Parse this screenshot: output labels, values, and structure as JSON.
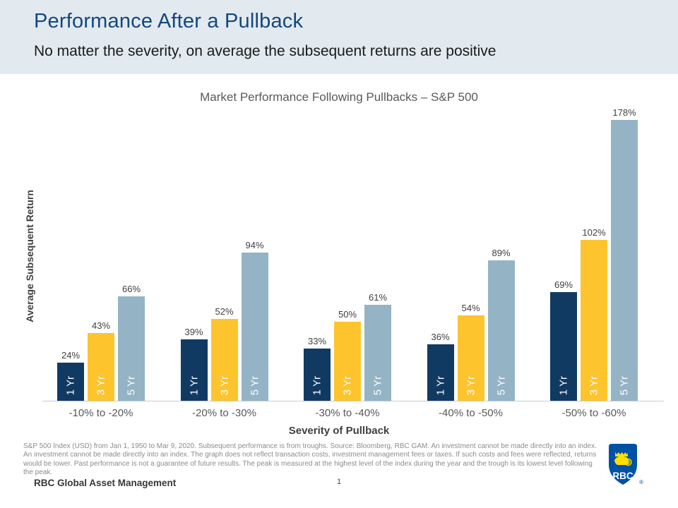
{
  "header": {
    "title": "Performance After a Pullback",
    "subtitle": "No matter the severity, on average the subsequent returns are positive"
  },
  "chart_data": {
    "type": "bar",
    "title": "Market Performance Following Pullbacks – S&P 500",
    "xlabel": "Severity of Pullback",
    "ylabel": "Average Subsequent Return",
    "categories": [
      "-10% to -20%",
      "-20% to -30%",
      "-30% to -40%",
      "-40% to -50%",
      "-50% to -60%"
    ],
    "series": [
      {
        "name": "1 Yr",
        "color": "#113A63",
        "values": [
          24,
          39,
          33,
          36,
          69
        ]
      },
      {
        "name": "3 Yr",
        "color": "#FDC42D",
        "values": [
          43,
          52,
          50,
          54,
          102
        ]
      },
      {
        "name": "5 Yr",
        "color": "#94B4C6",
        "values": [
          66,
          94,
          61,
          89,
          178
        ]
      }
    ],
    "value_suffix": "%",
    "ylim": [
      0,
      185
    ],
    "grid": false,
    "legend_position": "labels inside bars",
    "value_labels": "above bars"
  },
  "footnote": "S&P 500 Index (USD) from Jan 1, 1950 to Mar 9, 2020. Subsequent performance is from troughs. Source: Bloomberg, RBC GAM. An investment cannot be made directly into an index. An investment cannot be made directly into an index. The graph does not reflect transaction costs, investment management fees or taxes. If such costs and fees were reflected, returns would be lower. Past performance is not a guarantee of future results. The peak is measured at the highest level of the index during the year and the trough is its lowest level following the peak.",
  "footer": {
    "brand": "RBC Global Asset Management",
    "page_number": "1",
    "logo_text": "RBC",
    "logo_registered_mark": "®"
  },
  "colors": {
    "header_bg": "#E2EAEF",
    "title_blue": "#14477D",
    "bar_navy": "#113A63",
    "bar_gold": "#FDC42D",
    "bar_steel": "#94B4C6",
    "logo_blue": "#0051A5",
    "logo_yellow": "#FEDF01"
  }
}
